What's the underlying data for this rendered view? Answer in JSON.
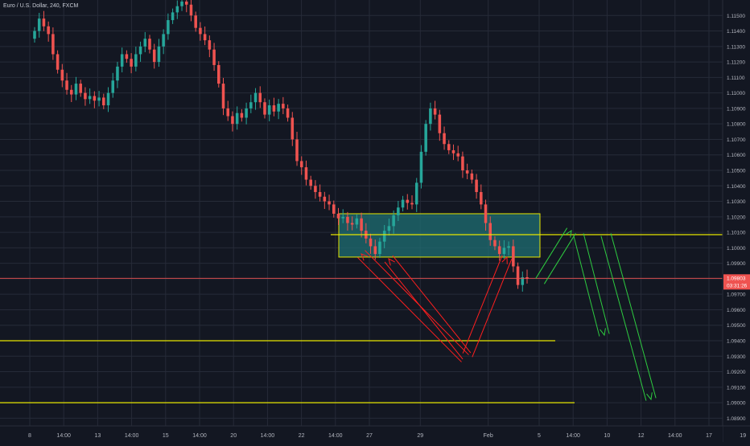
{
  "header": {
    "symbol_title": "Euro / U.S. Dollar, 240, FXCM"
  },
  "colors": {
    "background": "#131722",
    "grid": "#262b38",
    "candle_up": "#26a69a",
    "candle_down": "#ef5350",
    "level_line": "#e6e600",
    "zone_fill": "#1f6f73",
    "zone_border": "#e6e600",
    "price_line": "#ef5350",
    "projection_arrow": "#2ecc40",
    "support_arrow": "#ff1f1f",
    "axis_text": "#b2b5be",
    "price_label_bg": "#ef5350",
    "price_label_text": "#ffffff"
  },
  "price_scale": {
    "min": 1.0885,
    "max": 1.116,
    "ticks": [
      "1.11500",
      "1.11400",
      "1.11300",
      "1.11200",
      "1.11100",
      "1.11000",
      "1.10900",
      "1.10800",
      "1.10700",
      "1.10600",
      "1.10500",
      "1.10400",
      "1.10300",
      "1.10200",
      "1.10100",
      "1.10000",
      "1.09900",
      "1.09800",
      "1.09700",
      "1.09600",
      "1.09500",
      "1.09400",
      "1.09300",
      "1.09200",
      "1.09100",
      "1.09000",
      "1.08900"
    ]
  },
  "current_price": {
    "value": "1.09803",
    "countdown": "03:31:26",
    "price": 1.09803
  },
  "time_axis": {
    "labels": [
      "8",
      "14:00",
      "13",
      "14:00",
      "15",
      "14:00",
      "20",
      "14:00",
      "22",
      "14:00",
      "27",
      "29",
      "Feb",
      "5",
      "14:00",
      "10",
      "12",
      "14:00",
      "17",
      "19"
    ],
    "positions": [
      0,
      2,
      4,
      6,
      8,
      10,
      12,
      14,
      16,
      18,
      20,
      23,
      27,
      30,
      32,
      34,
      36,
      38,
      40,
      42
    ]
  },
  "chart_data": {
    "type": "candlestick",
    "title": "Euro / U.S. Dollar, 240, FXCM",
    "y_range": [
      1.0885,
      1.116
    ],
    "closes": [
      1.114,
      1.1148,
      1.1143,
      1.1138,
      1.1125,
      1.1115,
      1.1108,
      1.1102,
      1.1099,
      1.1106,
      1.11,
      1.1096,
      1.1098,
      1.1095,
      1.1097,
      1.1092,
      1.11,
      1.1108,
      1.1117,
      1.1125,
      1.1122,
      1.1117,
      1.1125,
      1.113,
      1.1135,
      1.1128,
      1.112,
      1.113,
      1.1138,
      1.1147,
      1.1152,
      1.1156,
      1.1159,
      1.1157,
      1.115,
      1.1142,
      1.1138,
      1.1134,
      1.1128,
      1.1118,
      1.1106,
      1.109,
      1.1085,
      1.108,
      1.1087,
      1.1084,
      1.109,
      1.1094,
      1.11,
      1.1094,
      1.1086,
      1.1092,
      1.1088,
      1.1093,
      1.109,
      1.1084,
      1.107,
      1.1056,
      1.1052,
      1.1044,
      1.104,
      1.1036,
      1.1033,
      1.103,
      1.1028,
      1.1022,
      1.1019,
      1.102,
      1.1016,
      1.1015,
      1.1019,
      1.1011,
      1.1006,
      1.1001,
      1.0996,
      1.1004,
      1.1011,
      1.1014,
      1.1021,
      1.1026,
      1.1031,
      1.1029,
      1.1028,
      1.1042,
      1.1062,
      1.108,
      1.109,
      1.1086,
      1.1074,
      1.1067,
      1.1063,
      1.1061,
      1.1059,
      1.105,
      1.1048,
      1.1044,
      1.1036,
      1.1028,
      1.1016,
      1.1005,
      1.1001,
      1.0996,
      1.1,
      1.1001,
      1.0988,
      1.0976,
      1.0981,
      1.098
    ],
    "levels": [
      {
        "kind": "resistance",
        "price": 1.10085
      },
      {
        "kind": "support",
        "price": 1.094
      },
      {
        "kind": "support",
        "price": 1.09
      }
    ],
    "zone": {
      "price_top": 1.1022,
      "price_bottom": 1.0994
    },
    "x_labels": [
      "8",
      "14:00",
      "13",
      "14:00",
      "15",
      "14:00",
      "20",
      "14:00",
      "22",
      "14:00",
      "27",
      "29",
      "Feb",
      "5",
      "14:00",
      "10",
      "12",
      "14:00",
      "17",
      "19"
    ],
    "grid": true
  }
}
